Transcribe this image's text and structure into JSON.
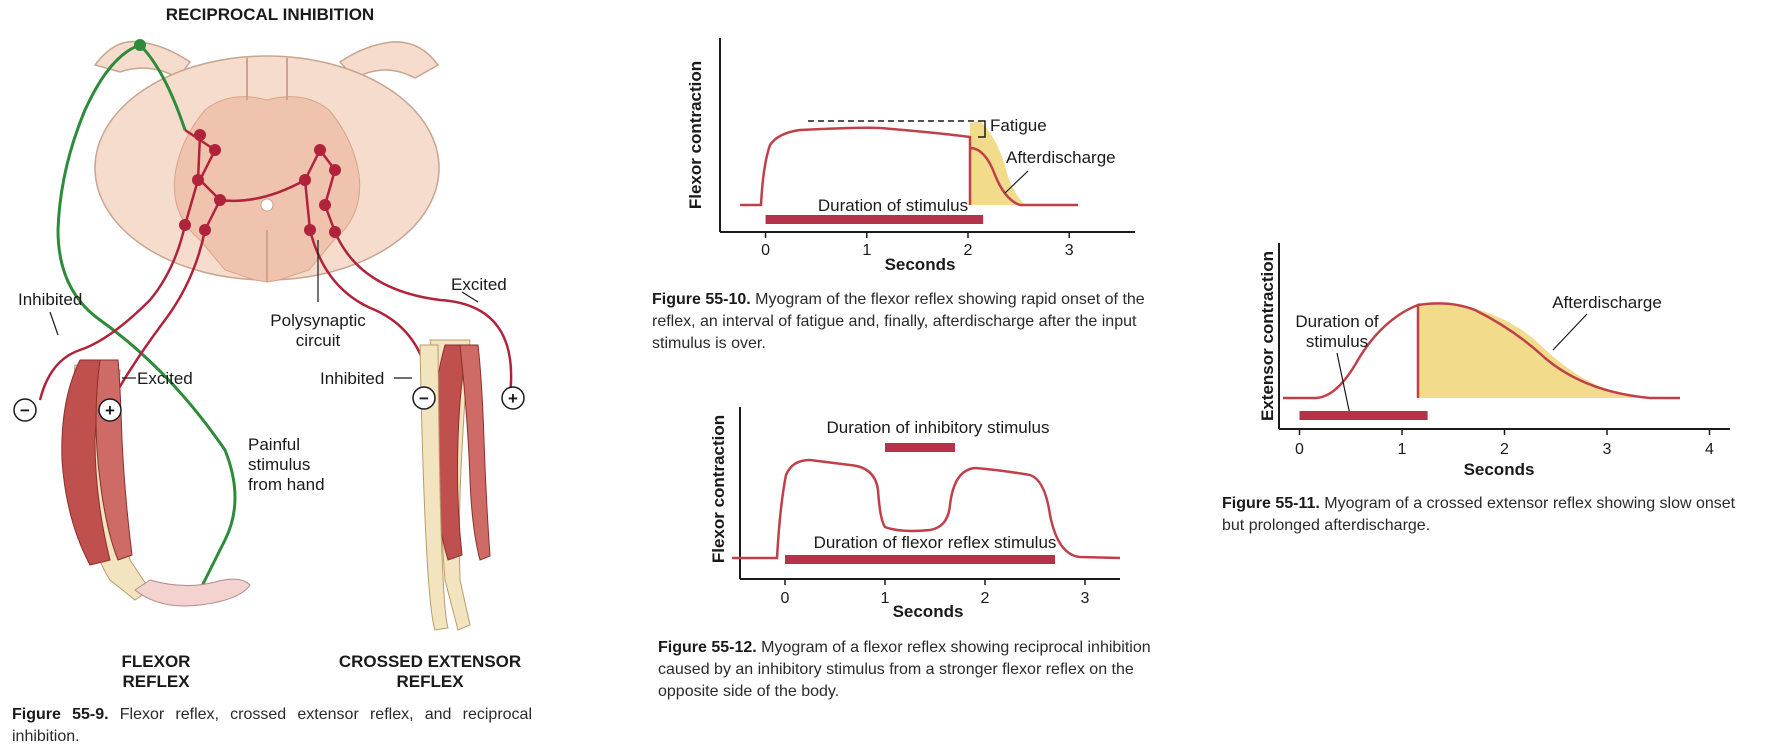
{
  "fig9": {
    "title": "RECIPROCAL INHIBITION",
    "inhibited_left": "Inhibited",
    "excited_left": "Excited",
    "excited_right": "Excited",
    "inhibited_right": "Inhibited",
    "polysynaptic_1": "Polysynaptic",
    "polysynaptic_2": "circuit",
    "painful_1": "Painful",
    "painful_2": "stimulus",
    "painful_3": "from hand",
    "flexor_1": "FLEXOR",
    "flexor_2": "REFLEX",
    "crossed_1": "CROSSED EXTENSOR",
    "crossed_2": "REFLEX",
    "minus": "−",
    "plus": "+",
    "caption_label": "Figure 55-9.",
    "caption_text": " Flexor reflex, crossed extensor reflex, and reciprocal inhibition."
  },
  "colors": {
    "nerve_red": "#b0233a",
    "nerve_green": "#2e8b3a",
    "cord_light": "#f5dccc",
    "cord_gray": "#efc3ad",
    "muscle": "#c0504d",
    "bone": "#f3e4c0",
    "curve": "#c0404a",
    "fill_yellow": "#f2dc8c",
    "bar": "#b5334a"
  },
  "chart_data": [
    {
      "type": "line",
      "id": "fig55-10",
      "ylabel": "Flexor contraction",
      "xlabel": "Seconds",
      "xticks": [
        0,
        1,
        2,
        3
      ],
      "xlim": [
        -0.45,
        3.65
      ],
      "annotations": [
        "Fatigue",
        "Afterdischarge",
        "Duration of stimulus"
      ],
      "stimulus": [
        0,
        2.15
      ],
      "caption_label": "Figure 55-10.",
      "caption_text": " Myogram of the flexor reflex showing rapid onset of the reflex, an interval of fatigue and, finally, afterdischarge after the input stimulus is over."
    },
    {
      "type": "line",
      "id": "fig55-12",
      "ylabel": "Flexor contraction",
      "xlabel": "Seconds",
      "xticks": [
        0,
        1,
        2,
        3
      ],
      "xlim": [
        -0.45,
        3.35
      ],
      "annotations": [
        "Duration of inhibitory stimulus",
        "Duration of flexor reflex stimulus"
      ],
      "inhibitory_stimulus": [
        1.0,
        1.7
      ],
      "flexor_stimulus": [
        0,
        2.7
      ],
      "caption_label": "Figure 55-12.",
      "caption_text": " Myogram of a flexor reflex showing reciprocal inhibition caused by an inhibitory stimulus from a stronger flexor reflex on the opposite side of the body."
    },
    {
      "type": "line",
      "id": "fig55-11",
      "ylabel": "Extensor contraction",
      "xlabel": "Seconds",
      "xticks": [
        0,
        1,
        2,
        3,
        4
      ],
      "xlim": [
        -0.2,
        4.2
      ],
      "annotations": [
        "Duration of",
        "stimulus",
        "Afterdischarge"
      ],
      "stimulus": [
        0,
        1.25
      ],
      "caption_label": "Figure 55-11.",
      "caption_text": " Myogram of a crossed extensor reflex showing slow onset but prolonged afterdischarge."
    }
  ]
}
